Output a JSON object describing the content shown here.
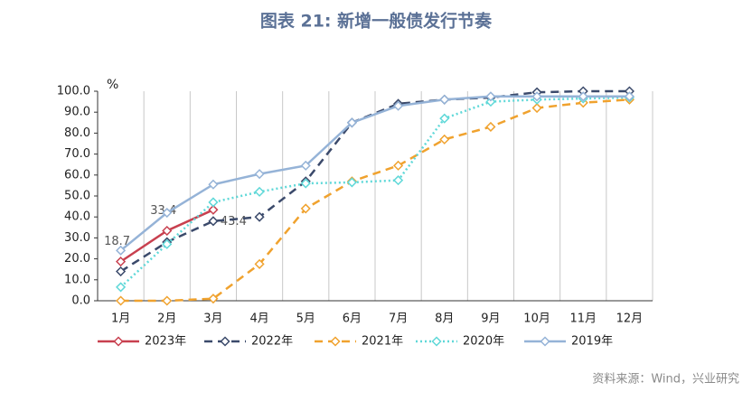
{
  "chart_data": {
    "type": "line",
    "title": "图表 21: 新增一般债发行节奏",
    "y_unit": "%",
    "source": "资料来源：Wind，兴业研究",
    "categories": [
      "1月",
      "2月",
      "3月",
      "4月",
      "5月",
      "6月",
      "7月",
      "8月",
      "9月",
      "10月",
      "11月",
      "12月"
    ],
    "ylim": [
      0,
      100
    ],
    "yticks": [
      {
        "value": 0,
        "label": "0.0"
      },
      {
        "value": 10,
        "label": "10.0"
      },
      {
        "value": 20,
        "label": "20.0"
      },
      {
        "value": 30,
        "label": "30.0"
      },
      {
        "value": 40,
        "label": "40.0"
      },
      {
        "value": 50,
        "label": "50.0"
      },
      {
        "value": 60,
        "label": "60.0"
      },
      {
        "value": 70,
        "label": "70.0"
      },
      {
        "value": 80,
        "label": "80.0"
      },
      {
        "value": 90,
        "label": "90.0"
      },
      {
        "value": 100,
        "label": "100.0"
      }
    ],
    "grid": true,
    "legend": "bottom",
    "series": [
      {
        "name": "2023年",
        "color": "#c8404f",
        "dash": "solid",
        "data_labels": true,
        "values": [
          18.7,
          33.4,
          43.4,
          null,
          null,
          null,
          null,
          null,
          null,
          null,
          null,
          null
        ]
      },
      {
        "name": "2022年",
        "color": "#3b4a6b",
        "dash": "dashed",
        "values": [
          14,
          28,
          38,
          40,
          57,
          85,
          94,
          96,
          97,
          99.5,
          100,
          100
        ]
      },
      {
        "name": "2021年",
        "color": "#f0a22e",
        "dash": "dashed",
        "values": [
          0,
          0,
          1,
          17.5,
          44,
          57,
          64.5,
          77,
          83,
          92,
          94.5,
          96
        ]
      },
      {
        "name": "2020年",
        "color": "#5fd8d8",
        "dash": "dotted",
        "values": [
          6.5,
          27,
          47,
          52,
          56,
          56.5,
          57.5,
          87,
          95,
          96,
          96.5,
          97
        ]
      },
      {
        "name": "2019年",
        "color": "#95b3d7",
        "dash": "solid",
        "values": [
          24,
          42,
          55.5,
          60.5,
          64.5,
          85,
          93,
          96,
          97.5,
          97.5,
          97.5,
          97.5
        ]
      }
    ]
  }
}
